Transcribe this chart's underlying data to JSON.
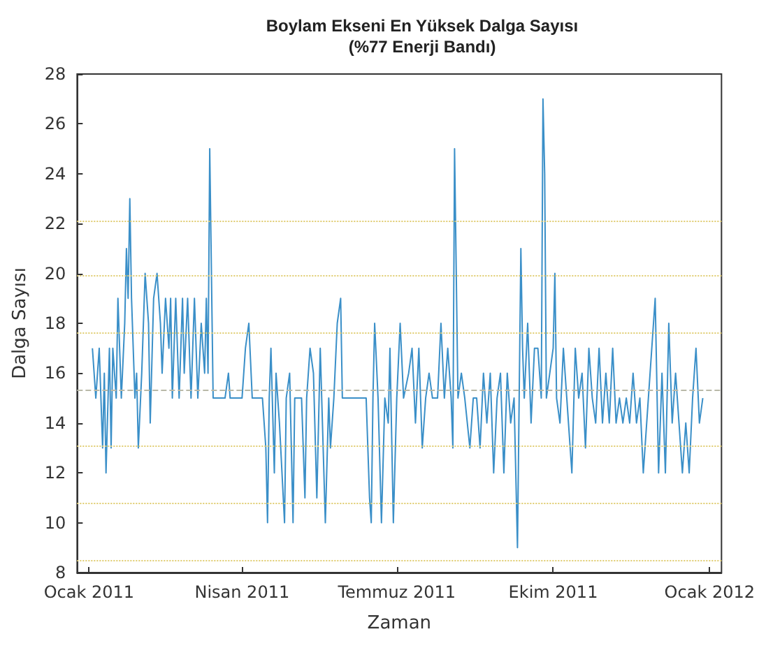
{
  "chart_data": {
    "type": "line",
    "title": "Boylam Ekseni En Yüksek Dalga Sayısı\n(%77 Enerji Bandı)",
    "xlabel": "Zaman",
    "ylabel": "Dalga Sayısı",
    "x": [
      "2011-01-03",
      "2011-01-05",
      "2011-01-07",
      "2011-01-09",
      "2011-01-10",
      "2011-01-11",
      "2011-01-13",
      "2011-01-14",
      "2011-01-15",
      "2011-01-17",
      "2011-01-18",
      "2011-01-20",
      "2011-01-22",
      "2011-01-23",
      "2011-01-24",
      "2011-01-25",
      "2011-01-26",
      "2011-01-28",
      "2011-01-29",
      "2011-01-30",
      "2011-02-01",
      "2011-02-03",
      "2011-02-05",
      "2011-02-06",
      "2011-02-08",
      "2011-02-10",
      "2011-02-12",
      "2011-02-13",
      "2011-02-15",
      "2011-02-17",
      "2011-02-18",
      "2011-02-19",
      "2011-02-21",
      "2011-02-23",
      "2011-02-25",
      "2011-02-26",
      "2011-02-28",
      "2011-03-02",
      "2011-03-04",
      "2011-03-06",
      "2011-03-08",
      "2011-03-10",
      "2011-03-11",
      "2011-03-12",
      "2011-03-13",
      "2011-03-14",
      "2011-03-15",
      "2011-03-22",
      "2011-03-24",
      "2011-03-25",
      "2011-04-01",
      "2011-04-03",
      "2011-04-05",
      "2011-04-07",
      "2011-04-13",
      "2011-04-15",
      "2011-04-16",
      "2011-04-17",
      "2011-04-18",
      "2011-04-20",
      "2011-04-21",
      "2011-04-23",
      "2011-04-26",
      "2011-04-27",
      "2011-04-29",
      "2011-05-01",
      "2011-05-02",
      "2011-05-06",
      "2011-05-08",
      "2011-05-09",
      "2011-05-11",
      "2011-05-13",
      "2011-05-15",
      "2011-05-17",
      "2011-05-20",
      "2011-05-22",
      "2011-05-23",
      "2011-05-25",
      "2011-05-27",
      "2011-05-29",
      "2011-05-30",
      "2011-06-13",
      "2011-06-15",
      "2011-06-16",
      "2011-06-17",
      "2011-06-18",
      "2011-06-20",
      "2011-06-22",
      "2011-06-24",
      "2011-06-26",
      "2011-06-27",
      "2011-06-29",
      "2011-07-01",
      "2011-07-03",
      "2011-07-05",
      "2011-07-08",
      "2011-07-10",
      "2011-07-12",
      "2011-07-14",
      "2011-07-16",
      "2011-07-18",
      "2011-07-20",
      "2011-07-22",
      "2011-07-25",
      "2011-07-27",
      "2011-07-29",
      "2011-07-31",
      "2011-08-02",
      "2011-08-03",
      "2011-08-04",
      "2011-08-05",
      "2011-08-06",
      "2011-08-08",
      "2011-08-10",
      "2011-08-13",
      "2011-08-15",
      "2011-08-17",
      "2011-08-19",
      "2011-08-21",
      "2011-08-23",
      "2011-08-25",
      "2011-08-27",
      "2011-08-29",
      "2011-08-31",
      "2011-09-02",
      "2011-09-04",
      "2011-09-06",
      "2011-09-08",
      "2011-09-10",
      "2011-09-11",
      "2011-09-12",
      "2011-09-13",
      "2011-09-14",
      "2011-09-16",
      "2011-09-18",
      "2011-09-20",
      "2011-09-22",
      "2011-09-24",
      "2011-09-25",
      "2011-09-26",
      "2011-09-27",
      "2011-09-29",
      "2011-10-01",
      "2011-10-02",
      "2011-10-03",
      "2011-10-05",
      "2011-10-07",
      "2011-10-09",
      "2011-10-12",
      "2011-10-14",
      "2011-10-16",
      "2011-10-18",
      "2011-10-20",
      "2011-10-22",
      "2011-10-24",
      "2011-10-26",
      "2011-10-28",
      "2011-10-30",
      "2011-11-01",
      "2011-11-03",
      "2011-11-05",
      "2011-11-07",
      "2011-11-09",
      "2011-11-11",
      "2011-11-13",
      "2011-11-15",
      "2011-11-17",
      "2011-11-19",
      "2011-11-21",
      "2011-11-23",
      "2011-11-27",
      "2011-11-30",
      "2011-12-02",
      "2011-12-04",
      "2011-12-06",
      "2011-12-08",
      "2011-12-10",
      "2011-12-12",
      "2011-12-14",
      "2011-12-16",
      "2011-12-18",
      "2011-12-20",
      "2011-12-22",
      "2011-12-24",
      "2011-12-26",
      "2011-12-28"
    ],
    "series": [
      {
        "color": "#3a8fc8",
        "values": [
          17,
          15,
          17,
          13,
          16,
          12,
          17,
          13,
          17,
          15,
          19,
          15,
          18,
          21,
          19,
          23,
          19,
          15,
          16,
          13,
          16,
          20,
          18,
          14,
          19,
          20,
          18,
          16,
          19,
          17,
          19,
          15,
          19,
          15,
          19,
          16,
          19,
          15,
          19,
          15,
          18,
          16,
          19,
          16,
          25,
          20,
          15,
          15,
          16,
          15,
          15,
          17,
          18,
          15,
          15,
          13,
          10,
          15,
          17,
          12,
          16,
          14,
          10,
          15,
          16,
          10,
          15,
          15,
          11,
          15,
          17,
          16,
          11,
          17,
          10,
          15,
          13,
          15,
          18,
          19,
          15,
          15,
          11,
          10,
          15,
          18,
          15,
          10,
          15,
          14,
          17,
          10,
          15,
          18,
          15,
          16,
          17,
          14,
          17,
          13,
          15,
          16,
          15,
          15,
          18,
          15,
          17,
          15,
          13,
          25,
          20,
          15,
          16,
          15,
          13,
          15,
          15,
          13,
          16,
          14,
          16,
          12,
          15,
          16,
          12,
          16,
          14,
          15,
          9,
          15,
          21,
          17,
          15,
          18,
          14,
          17,
          17,
          15,
          27,
          24,
          15,
          16,
          17,
          20,
          15,
          14,
          17,
          15,
          12,
          17,
          15,
          16,
          13,
          17,
          15,
          14,
          17,
          14,
          16,
          14,
          17,
          14,
          15,
          14,
          15,
          14,
          16,
          14,
          15,
          12,
          16,
          19,
          12,
          16,
          12,
          18,
          14,
          16,
          14,
          12,
          14,
          12,
          15,
          17,
          14,
          15
        ]
      }
    ],
    "xlim": [
      "2010-12-25",
      "2012-01-08"
    ],
    "xticks": [
      {
        "value": "2011-01-01",
        "label": "Ocak 2011"
      },
      {
        "value": "2011-04-01",
        "label": "Nisan 2011"
      },
      {
        "value": "2011-07-01",
        "label": "Temmuz 2011"
      },
      {
        "value": "2011-10-01",
        "label": "Ekim 2011"
      },
      {
        "value": "2012-01-01",
        "label": "Ocak 2012"
      }
    ],
    "ylim": [
      8,
      28
    ],
    "yticks": [
      8,
      10,
      12,
      14,
      16,
      18,
      20,
      22,
      24,
      26,
      28
    ],
    "ref_lines": [
      {
        "axis": "y",
        "value": 8.5,
        "color": "#e0cc70",
        "line_style": "dotted"
      },
      {
        "axis": "y",
        "value": 10.8,
        "color": "#e0cc70",
        "line_style": "dotted"
      },
      {
        "axis": "y",
        "value": 13.1,
        "color": "#e0cc70",
        "line_style": "dotted"
      },
      {
        "axis": "y",
        "value": 15.3,
        "color": "#b9b9a8",
        "line_style": "dashed"
      },
      {
        "axis": "y",
        "value": 17.6,
        "color": "#e0cc70",
        "line_style": "dotted"
      },
      {
        "axis": "y",
        "value": 19.9,
        "color": "#e0cc70",
        "line_style": "dotted"
      },
      {
        "axis": "y",
        "value": 22.1,
        "color": "#e0cc70",
        "line_style": "dotted"
      }
    ],
    "grid": false,
    "marker": "none",
    "line_style": "solid"
  }
}
